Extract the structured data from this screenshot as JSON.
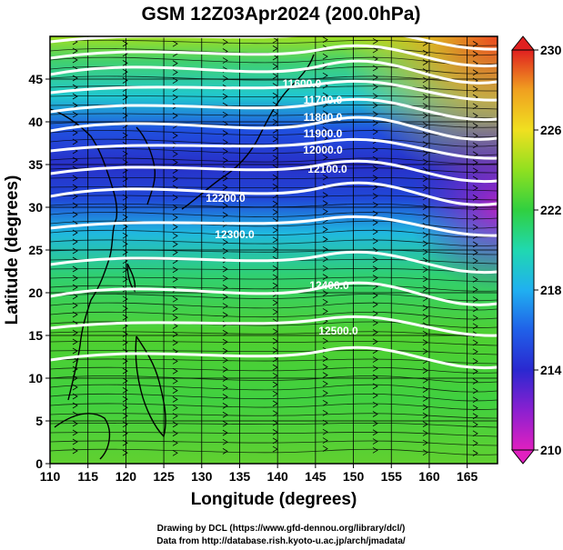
{
  "title": "GSM 12Z03Apr2024 (200.0hPa)",
  "x_axis": {
    "label": "Longitude (degrees)",
    "ticks": [
      110,
      115,
      120,
      125,
      130,
      135,
      140,
      145,
      150,
      155,
      160,
      165
    ],
    "range": [
      110,
      169
    ]
  },
  "y_axis": {
    "label": "Latitude  (degrees)",
    "ticks": [
      0,
      5,
      10,
      15,
      20,
      25,
      30,
      35,
      40,
      45
    ],
    "range": [
      0,
      50
    ]
  },
  "colorbar": {
    "ticks": [
      210,
      214,
      218,
      222,
      226,
      230
    ],
    "range": [
      210,
      230
    ],
    "colors": [
      "#e020c0",
      "#7a20d8",
      "#2030d0",
      "#20a0f0",
      "#20e0c0",
      "#40d040",
      "#a0e020",
      "#f0e020",
      "#f09020",
      "#e02020"
    ]
  },
  "contour_labels": [
    "11600.0",
    "11700.0",
    "11800.0",
    "11900.0",
    "12000.0",
    "12100.0",
    "12200.0",
    "12300.0",
    "12400.0",
    "12500.0"
  ],
  "credits": {
    "line1": "Drawing by DCL (https://www.gfd-dennou.org/library/dcl/)",
    "line2": "Data from http://database.rish.kyoto-u.ac.jp/arch/jmadata/"
  }
}
